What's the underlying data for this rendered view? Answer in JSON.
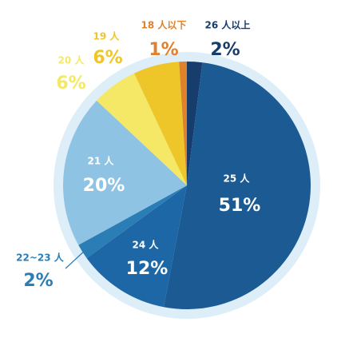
{
  "chart_data": {
    "type": "pie",
    "categories": [
      "26 人以上",
      "25 人",
      "24 人",
      "22~23 人",
      "21 人",
      "20 人",
      "19 人",
      "18 人以下"
    ],
    "values": [
      2,
      51,
      12,
      2,
      20,
      6,
      6,
      1
    ],
    "value_labels": [
      "2%",
      "51%",
      "12%",
      "2%",
      "20%",
      "6%",
      "6%",
      "1%"
    ],
    "colors": [
      "#163d6b",
      "#1c5a93",
      "#1d67a6",
      "#2b7db6",
      "#8ec3e3",
      "#f4e866",
      "#efc62a",
      "#e0812c"
    ]
  }
}
